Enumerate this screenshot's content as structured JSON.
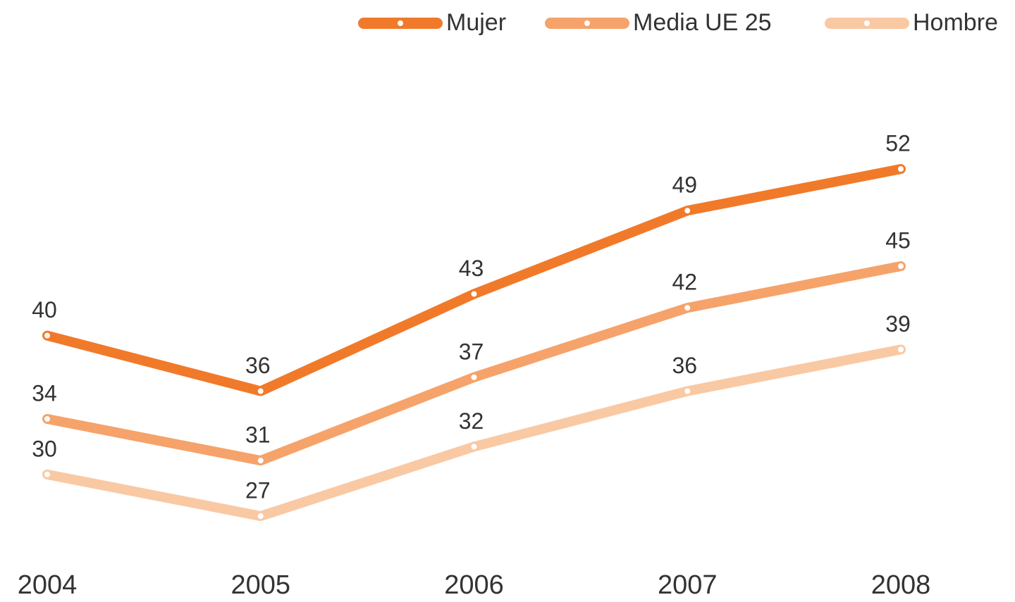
{
  "chart_data": {
    "type": "line",
    "categories": [
      "2004",
      "2005",
      "2006",
      "2007",
      "2008"
    ],
    "series": [
      {
        "name": "Mujer",
        "color": "#f07a2a",
        "values": [
          40,
          36,
          43,
          49,
          52
        ]
      },
      {
        "name": "Media UE 25",
        "color": "#f5a36a",
        "values": [
          34,
          31,
          37,
          42,
          45
        ]
      },
      {
        "name": "Hombre",
        "color": "#f9c9a4",
        "values": [
          30,
          27,
          32,
          36,
          39
        ]
      }
    ]
  }
}
